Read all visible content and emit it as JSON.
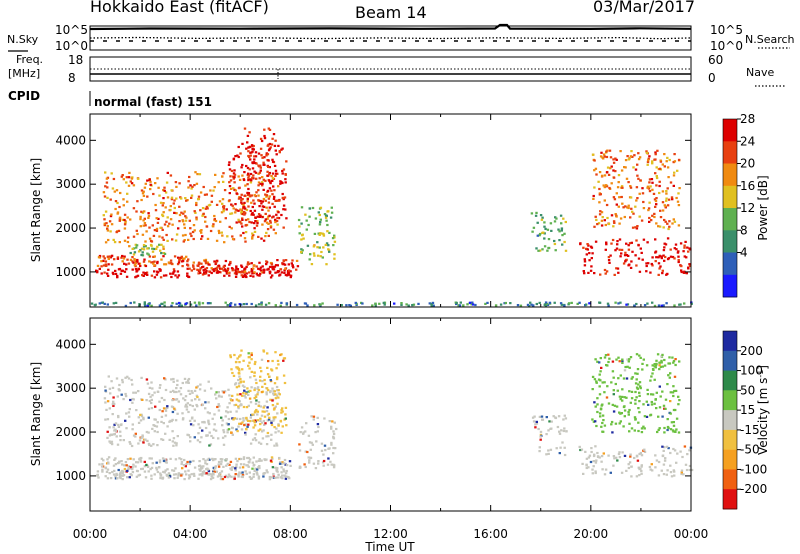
{
  "header": {
    "title": "Hokkaido East (fitACF)",
    "beam": "Beam 14",
    "date": "03/Mar/2017"
  },
  "noise_panel": {
    "left_label": "N.Sky",
    "right_label": "N.Search",
    "left_ticks": [
      "10^5",
      "10^0"
    ],
    "right_ticks": [
      "10^5",
      "10^0"
    ]
  },
  "freq_panel": {
    "left_label_1": "Freq.",
    "left_label_2": "[MHz]",
    "right_label": "Nave",
    "left_ticks": [
      "18",
      "8"
    ],
    "right_ticks": [
      "60",
      "0"
    ]
  },
  "cpid_panel": {
    "label": "CPID",
    "mode": "normal (fast) 151"
  },
  "range_axis": {
    "label": "Slant Range [km]",
    "ticks": [
      "1000",
      "2000",
      "3000",
      "4000"
    ]
  },
  "time_axis": {
    "label": "Time UT",
    "ticks": [
      "00:00",
      "04:00",
      "08:00",
      "12:00",
      "16:00",
      "20:00",
      "00:00"
    ]
  },
  "power_bar": {
    "label": "Power [dB]",
    "ticks": [
      "4",
      "8",
      "12",
      "16",
      "20",
      "24",
      "28"
    ],
    "colors": [
      "#1a1aff",
      "#2e5fb8",
      "#3a8f6a",
      "#5fb050",
      "#e0c020",
      "#f08a10",
      "#e84010",
      "#dd0000"
    ]
  },
  "velocity_bar": {
    "label_main": "Velocity [m s",
    "label_sup": "-1",
    "label_end": "]",
    "ticks": [
      "200",
      "100",
      "50",
      "15",
      "-15",
      "-50",
      "-100",
      "-200"
    ],
    "colors": [
      "#1e2aa0",
      "#2f5fa8",
      "#2e8a4a",
      "#6cc040",
      "#c8c8c0",
      "#f0c040",
      "#f5a020",
      "#f06010",
      "#e01010"
    ]
  },
  "chart_data": {
    "type": "heatmap",
    "title": "Hokkaido East (fitACF)",
    "xlabel": "Time UT",
    "ylabel": "Slant Range [km]",
    "xlim_hours": [
      0,
      24
    ],
    "ylim_km": [
      200,
      4600
    ],
    "panels": [
      {
        "name": "Power",
        "unit": "dB",
        "colorbar_range": [
          0,
          30
        ],
        "regions": [
          {
            "t": [
              0.2,
              8.0
            ],
            "r": [
              900,
              1100
            ],
            "value": 30
          },
          {
            "t": [
              0.2,
              4.0
            ],
            "r": [
              1150,
              1400
            ],
            "value": 24
          },
          {
            "t": [
              4.0,
              8.3
            ],
            "r": [
              1000,
              1300
            ],
            "value": 26
          },
          {
            "t": [
              1.5,
              3.0
            ],
            "r": [
              1400,
              1650
            ],
            "value": 14
          },
          {
            "t": [
              0.5,
              7.5
            ],
            "r": [
              1700,
              3300
            ],
            "value": 22
          },
          {
            "t": [
              5.5,
              7.8
            ],
            "r": [
              2000,
              3900
            ],
            "value": 28
          },
          {
            "t": [
              6.0,
              7.4
            ],
            "r": [
              3300,
              4300
            ],
            "value": 28
          },
          {
            "t": [
              8.3,
              9.8
            ],
            "r": [
              1200,
              2500
            ],
            "value": 14
          },
          {
            "t": [
              0.0,
              24.0
            ],
            "r": [
              250,
              330
            ],
            "value": 8
          },
          {
            "t": [
              17.6,
              19.0
            ],
            "r": [
              1500,
              2400
            ],
            "value": 12
          },
          {
            "t": [
              19.5,
              24.0
            ],
            "r": [
              950,
              1800
            ],
            "value": 29
          },
          {
            "t": [
              20.0,
              23.5
            ],
            "r": [
              2000,
              3800
            ],
            "value": 22
          }
        ]
      },
      {
        "name": "Velocity",
        "unit": "m s-1",
        "colorbar_range": [
          -250,
          250
        ],
        "regions": [
          {
            "t": [
              0.2,
              8.0
            ],
            "r": [
              950,
              1450
            ],
            "value": 0
          },
          {
            "t": [
              0.5,
              7.5
            ],
            "r": [
              1700,
              3300
            ],
            "value": 0
          },
          {
            "t": [
              5.5,
              7.8
            ],
            "r": [
              2000,
              3900
            ],
            "value": -30
          },
          {
            "t": [
              8.3,
              9.8
            ],
            "r": [
              1200,
              2400
            ],
            "value": 0
          },
          {
            "t": [
              17.6,
              19.0
            ],
            "r": [
              1500,
              2400
            ],
            "value": 0
          },
          {
            "t": [
              19.5,
              24.0
            ],
            "r": [
              1000,
              1700
            ],
            "value": 0
          },
          {
            "t": [
              20.0,
              23.5
            ],
            "r": [
              2000,
              3800
            ],
            "value": 30
          }
        ]
      }
    ]
  }
}
